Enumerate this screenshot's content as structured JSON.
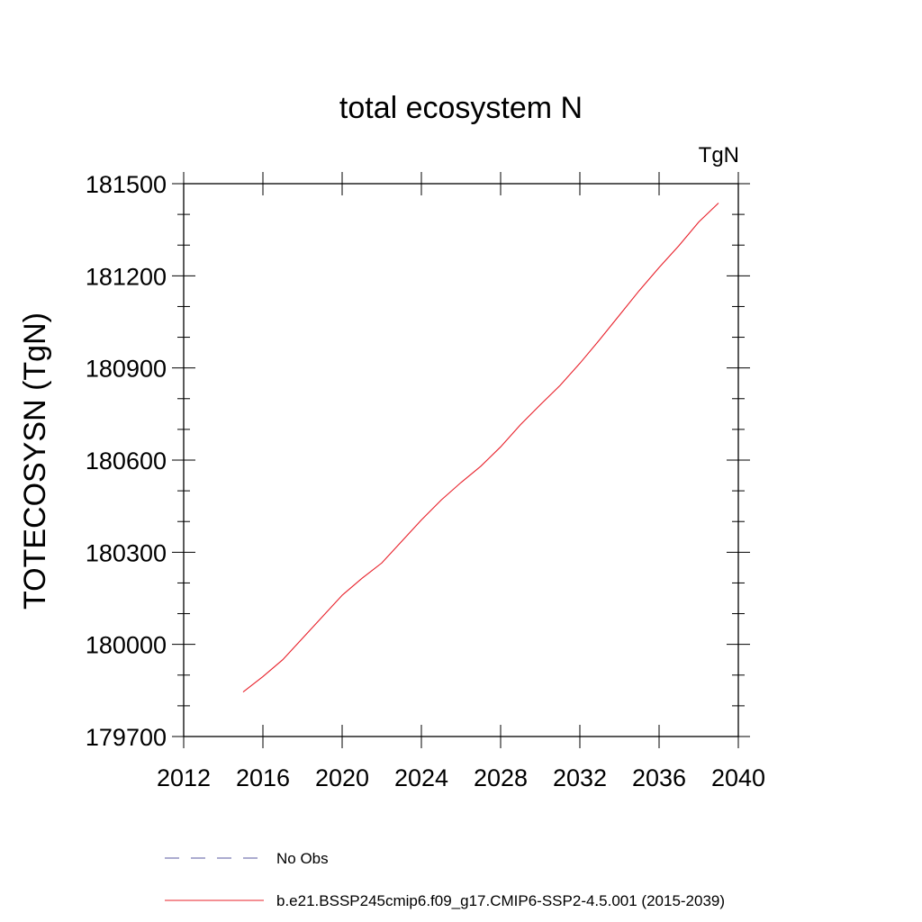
{
  "chart_data": {
    "type": "line",
    "title": "total ecosystem N",
    "units_label": "TgN",
    "xlabel": "",
    "ylabel": "TOTECOSYSN  (TgN)",
    "xlim": [
      2012,
      2040
    ],
    "ylim": [
      179700,
      181500
    ],
    "x_ticks": [
      2012,
      2016,
      2020,
      2024,
      2028,
      2032,
      2036,
      2040
    ],
    "x_tick_labels": [
      "2012",
      "2016",
      "2020",
      "2024",
      "2028",
      "2032",
      "2036",
      "2040"
    ],
    "y_ticks": [
      179700,
      180000,
      180300,
      180600,
      180900,
      181200,
      181500
    ],
    "y_tick_labels": [
      "179700",
      "180000",
      "180300",
      "180600",
      "180900",
      "181200",
      "181500"
    ],
    "grid": false,
    "legend_position": "bottom",
    "legend": [
      {
        "label": "No Obs",
        "color": "#5a5aa0",
        "style": "dashed"
      },
      {
        "label": "b.e21.BSSP245cmip6.f09_g17.CMIP6-SSP2-4.5.001 (2015-2039)",
        "color": "#e8202a",
        "style": "solid"
      }
    ],
    "series": [
      {
        "name": "b.e21.BSSP245cmip6.f09_g17.CMIP6-SSP2-4.5.001 (2015-2039)",
        "color": "#e8202a",
        "x": [
          2015,
          2016,
          2017,
          2018,
          2019,
          2020,
          2021,
          2022,
          2023,
          2024,
          2025,
          2026,
          2027,
          2028,
          2029,
          2030,
          2031,
          2032,
          2033,
          2034,
          2035,
          2036,
          2037,
          2038,
          2039
        ],
        "y": [
          179845,
          179895,
          179950,
          180020,
          180090,
          180160,
          180215,
          180265,
          180335,
          180405,
          180470,
          180527,
          180580,
          180643,
          180715,
          180780,
          180843,
          180915,
          180992,
          181072,
          181152,
          181227,
          181298,
          181375,
          181437
        ]
      }
    ]
  }
}
